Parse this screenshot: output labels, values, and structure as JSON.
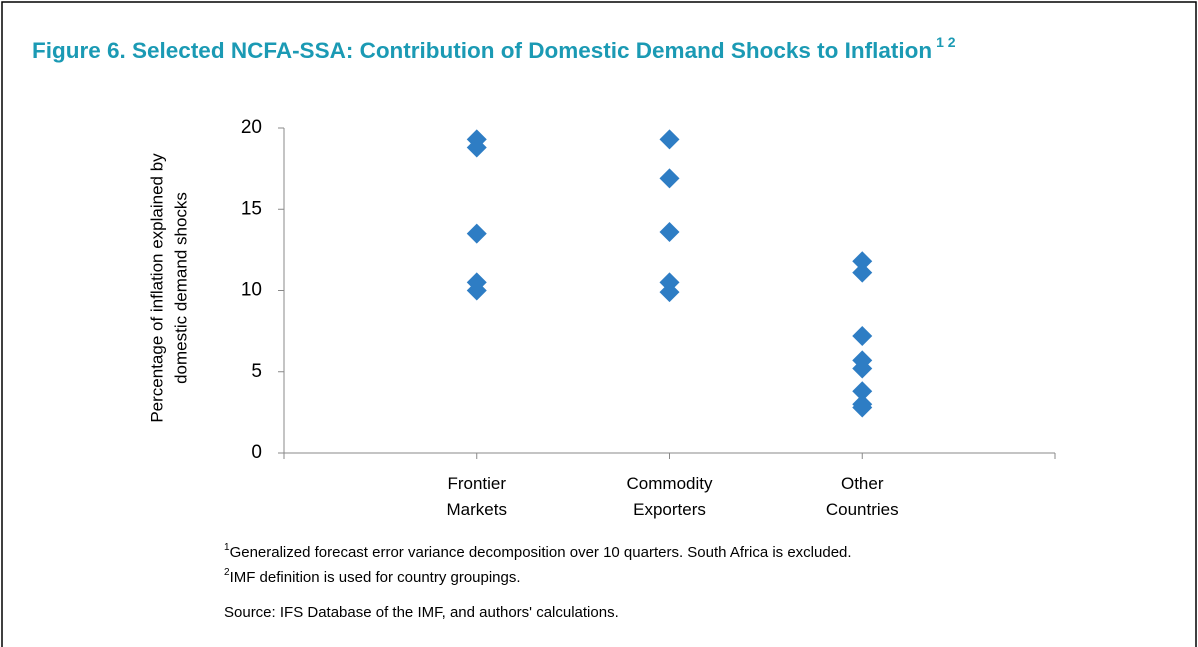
{
  "chart_data": {
    "type": "scatter",
    "title": "Figure 6. Selected NCFA-SSA: Contribution of Domestic Demand Shocks to Inflation",
    "title_superscript": "1 2",
    "ylabel": [
      "Percentage of inflation explained by",
      "domestic demand shocks"
    ],
    "categories": [
      "Frontier Markets",
      "Commodity Exporters",
      "Other Countries"
    ],
    "values": [
      [
        19.3,
        18.8,
        13.5,
        10.5,
        10.0
      ],
      [
        19.3,
        16.9,
        13.6,
        10.5,
        9.9
      ],
      [
        11.8,
        11.1,
        7.2,
        5.7,
        5.2,
        3.8,
        3.0,
        2.8
      ]
    ],
    "color": "#2e7dc4",
    "ylim": [
      0,
      20
    ],
    "yticks": [
      0,
      5,
      10,
      15,
      20
    ],
    "grid": false,
    "notes": [
      {
        "marker": "1",
        "text": "Generalized forecast error variance decomposition over 10 quarters. South Africa is excluded."
      },
      {
        "marker": "2",
        "text": "IMF definition is used for country groupings."
      }
    ],
    "source": "Source: IFS Database of the IMF, and authors' calculations."
  }
}
